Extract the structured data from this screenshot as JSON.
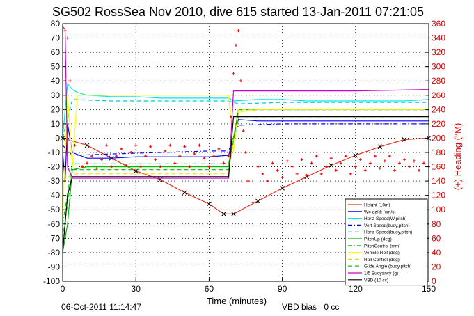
{
  "chart_data": {
    "type": "line",
    "title": "SG502 RossSea Nov 2010, dive 615 started 13-Jan-2011 07:21:05",
    "xlabel": "Time (minutes)",
    "ylabel_right": "(+) Heading (°M)",
    "footer_left": "06-Oct-2011 11:14:47",
    "footer_center": "VBD bias =0 cc",
    "xlim": [
      0,
      150
    ],
    "ylim": [
      -100,
      80
    ],
    "y2lim": [
      0,
      360
    ],
    "xticks": [
      0,
      30,
      60,
      90,
      120,
      150
    ],
    "yticks": [
      -100,
      -90,
      -80,
      -70,
      -60,
      -50,
      -40,
      -30,
      -20,
      -10,
      0,
      10,
      20,
      30,
      40,
      50,
      60,
      70,
      80
    ],
    "y2ticks": [
      0,
      20,
      40,
      60,
      80,
      100,
      120,
      140,
      160,
      180,
      200,
      220,
      240,
      260,
      280,
      300,
      320,
      340,
      360
    ],
    "grid": true,
    "legend_position": "bottom-right",
    "series": [
      {
        "name": "Height (10m)",
        "color": "#e0301e",
        "style": "solid",
        "x": [
          0,
          10,
          20,
          30,
          40,
          50,
          60,
          66,
          70,
          80,
          90,
          100,
          110,
          120,
          130,
          140,
          150
        ],
        "y": [
          0,
          -5,
          -14,
          -23,
          -29,
          -38,
          -46,
          -53,
          -53,
          -44,
          -35,
          -27,
          -19,
          -12,
          -6,
          -1,
          0
        ]
      },
      {
        "name": "W= dz/dt (cm/s)",
        "color": "#0000ff",
        "style": "solid",
        "x": [
          0,
          1,
          2,
          4,
          10,
          20,
          30,
          40,
          50,
          60,
          68,
          72,
          80,
          90,
          100,
          110,
          120,
          130,
          140,
          150
        ],
        "y": [
          -10,
          -30,
          10,
          -10,
          -14,
          -14,
          -13,
          -13,
          -13,
          -13,
          -12,
          13,
          12,
          12,
          12,
          12,
          12,
          12,
          12,
          12
        ]
      },
      {
        "name": "Horiz Speed(W,pitch)",
        "color": "#00e5ee",
        "style": "solid",
        "x": [
          0,
          2,
          4,
          6,
          10,
          20,
          30,
          40,
          50,
          60,
          68,
          70,
          80,
          90,
          100,
          110,
          120,
          130,
          140,
          150
        ],
        "y": [
          0,
          38,
          34,
          32,
          30,
          29,
          29,
          28,
          28,
          28,
          28,
          26,
          27,
          27,
          26,
          26,
          26,
          26,
          26,
          27
        ]
      },
      {
        "name": "Vert Speed(buoy,pitch)",
        "color": "#0000ff",
        "style": "dashdot",
        "x": [
          0,
          4,
          20,
          40,
          60,
          68,
          72,
          90,
          110,
          130,
          150
        ],
        "y": [
          -5,
          -12,
          -11,
          -10,
          -9,
          -9,
          9,
          10,
          10,
          10,
          10
        ]
      },
      {
        "name": "Horiz Speed(buoy,pitch)",
        "color": "#00ced1",
        "style": "dashed",
        "x": [
          0,
          4,
          20,
          40,
          60,
          68,
          72,
          90,
          110,
          130,
          150
        ],
        "y": [
          0,
          27,
          26,
          26,
          26,
          26,
          24,
          25,
          25,
          25,
          25
        ]
      },
      {
        "name": "PitchUp (deg)",
        "color": "#00b800",
        "style": "solid",
        "x": [
          0,
          2,
          4,
          10,
          30,
          50,
          68,
          72,
          90,
          110,
          130,
          150
        ],
        "y": [
          -80,
          -60,
          -22,
          -20,
          -20,
          -20,
          -20,
          20,
          20,
          20,
          20,
          20
        ]
      },
      {
        "name": "PitchControl (mm)",
        "color": "#00cc00",
        "style": "dashdot",
        "x": [
          0,
          4,
          20,
          40,
          60,
          68,
          72,
          90,
          110,
          130,
          150
        ],
        "y": [
          -60,
          -18,
          -18,
          -18,
          -18,
          -18,
          15,
          15,
          15,
          15,
          15
        ]
      },
      {
        "name": "Vehicle Roll (deg)",
        "color": "#ffff00",
        "style": "solid",
        "x": [
          0,
          2,
          4,
          6,
          10,
          20,
          30,
          40,
          50,
          60,
          68,
          70,
          72,
          80,
          90,
          100,
          110,
          120,
          130,
          150
        ],
        "y": [
          -55,
          30,
          -20,
          30,
          30,
          30,
          30,
          30,
          30,
          30,
          30,
          -10,
          18,
          20,
          20,
          20,
          20,
          20,
          20,
          20
        ]
      },
      {
        "name": "Roll Control (deg)",
        "color": "#ffd700",
        "style": "dashed",
        "x": [
          0,
          4,
          30,
          68,
          72,
          110,
          150
        ],
        "y": [
          -30,
          -25,
          -25,
          -25,
          20,
          20,
          20
        ]
      },
      {
        "name": "Glide Angle (buoy,pitch)",
        "color": "#00b800",
        "style": "dashed",
        "x": [
          0,
          4,
          30,
          68,
          72,
          110,
          150
        ],
        "y": [
          -70,
          -22,
          -22,
          -22,
          19,
          19,
          19
        ]
      },
      {
        "name": "1/5 Buoyancy (g)",
        "color": "#cc00cc",
        "style": "solid",
        "x": [
          0,
          1,
          2,
          4,
          20,
          40,
          68,
          70,
          90,
          120,
          150
        ],
        "y": [
          78,
          76,
          -20,
          -28,
          -28,
          -28,
          -28,
          33,
          33,
          33,
          34
        ]
      },
      {
        "name": "VBD (10 cc)",
        "color": "#000000",
        "style": "solid",
        "x": [
          0,
          2,
          4,
          68,
          70,
          150
        ],
        "y": [
          -80,
          -40,
          -27,
          -27,
          15,
          15
        ]
      }
    ],
    "heading_points": {
      "name": "Heading (°M)",
      "color": "#ff0000",
      "x": [
        1,
        2,
        3,
        5,
        8,
        10,
        12,
        14,
        16,
        18,
        20,
        22,
        24,
        26,
        28,
        30,
        32,
        34,
        36,
        38,
        40,
        42,
        44,
        46,
        48,
        50,
        52,
        54,
        56,
        58,
        60,
        62,
        64,
        66,
        68,
        69,
        70,
        71,
        72,
        73,
        74,
        75,
        76,
        78,
        80,
        82,
        84,
        86,
        88,
        90,
        92,
        94,
        96,
        98,
        100,
        102,
        104,
        106,
        108,
        110,
        112,
        114,
        116,
        118,
        120,
        122,
        124,
        126,
        128,
        130,
        132,
        134,
        136,
        138,
        140,
        142,
        144,
        146,
        148,
        150
      ],
      "y": [
        350,
        340,
        280,
        190,
        160,
        165,
        175,
        158,
        170,
        190,
        160,
        175,
        185,
        162,
        180,
        190,
        160,
        175,
        188,
        170,
        160,
        182,
        190,
        165,
        175,
        188,
        160,
        178,
        190,
        172,
        160,
        175,
        185,
        165,
        175,
        230,
        290,
        330,
        350,
        280,
        210,
        180,
        140,
        110,
        160,
        150,
        140,
        165,
        155,
        145,
        168,
        160,
        150,
        170,
        148,
        165,
        175,
        150,
        160,
        172,
        155,
        165,
        175,
        150,
        160,
        170,
        155,
        165,
        175,
        158,
        168,
        175,
        155,
        165,
        170,
        160,
        168,
        155,
        165,
        160
      ]
    }
  }
}
